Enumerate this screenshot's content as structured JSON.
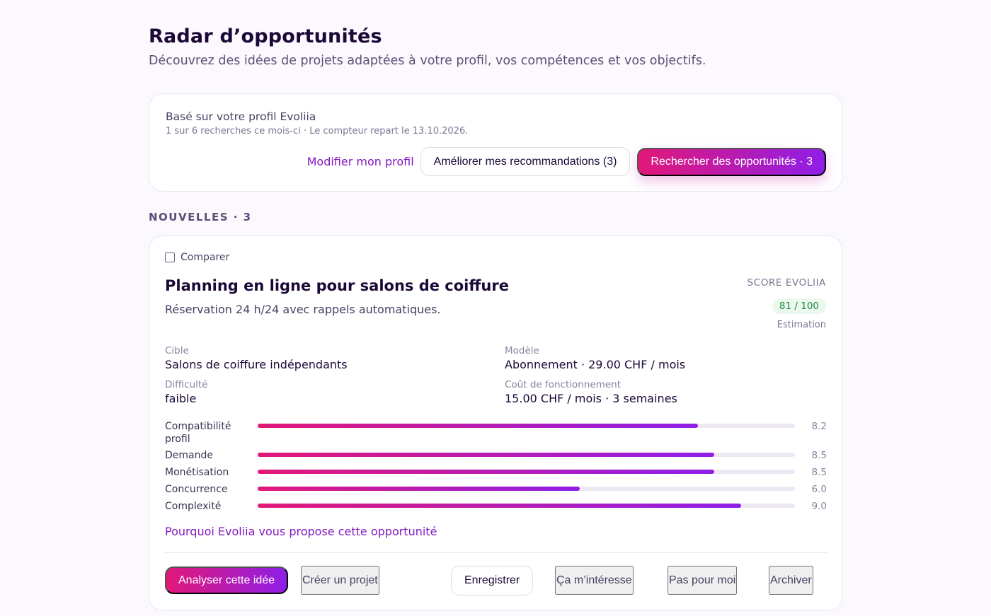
{
  "header": {
    "title": "Radar d’opportunités",
    "subtitle": "Découvrez des idées de projets adaptées à votre profil, vos compétences et vos objectifs."
  },
  "profile": {
    "based_on": "Basé sur votre profil Evoliia",
    "counter": "1 sur 6 recherches ce mois-ci · Le compteur repart le 13.10.2026.",
    "edit_label": "Modifier mon profil",
    "improve_label": "Améliorer mes recommandations (3)",
    "search_label": "Rechercher des opportunités · 3"
  },
  "section": {
    "label": "NOUVELLES · 3"
  },
  "opportunity": {
    "compare_label": "Comparer",
    "title": "Planning en ligne pour salons de coiffure",
    "description": "Réservation 24 h/24 avec rappels automatiques.",
    "score_label": "SCORE EVOLIIA",
    "score_value": "81 / 100",
    "score_note": "Estimation",
    "meta": {
      "target_key": "Cible",
      "target_value": "Salons de coiffure indépendants",
      "model_key": "Modèle",
      "model_value": "Abonnement · 29.00 CHF / mois",
      "difficulty_key": "Difficulté",
      "difficulty_value": "faible",
      "cost_key": "Coût de fonctionnement",
      "cost_value": "15.00 CHF / mois · 3 semaines"
    },
    "criteria": [
      {
        "label": "Compatibilité profil",
        "value": "8.2",
        "score": 8.2
      },
      {
        "label": "Demande",
        "value": "8.5",
        "score": 8.5
      },
      {
        "label": "Monétisation",
        "value": "8.5",
        "score": 8.5
      },
      {
        "label": "Concurrence",
        "value": "6.0",
        "score": 6.0
      },
      {
        "label": "Complexité",
        "value": "9.0",
        "score": 9.0
      }
    ],
    "criteria_max": 10,
    "why_label": "Pourquoi Evoliia vous propose cette opportunité",
    "actions": {
      "analyze": "Analyser cette idée",
      "create": "Créer un projet",
      "save": "Enregistrer",
      "interested": "Ça m’intéresse",
      "not_for_me": "Pas pour moi",
      "archive": "Archiver"
    }
  },
  "colors": {
    "accent_start": "#e21878",
    "accent_end": "#8f1ee8",
    "link": "#8419c2",
    "score_green": "#1e8a3c"
  }
}
